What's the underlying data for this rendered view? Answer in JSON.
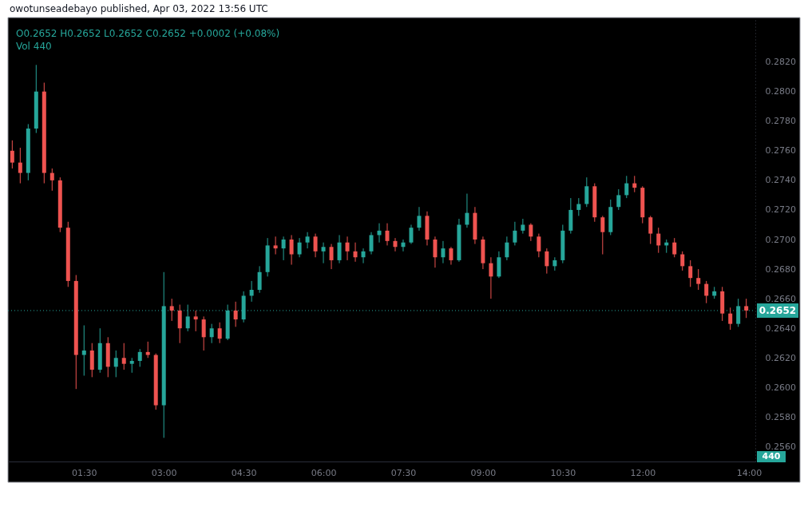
{
  "chart_data": {
    "type": "candlestick",
    "title": "owotunseadebayo published, Apr 03, 2022 13:56 UTC",
    "subtitle": "O0.2652 H0.2652 L0.2652 C0.2652 +0.0002 (+0.08%)",
    "annotations": [
      "Vol 440",
      "440"
    ],
    "x": [
      0.15,
      0.3,
      0.45,
      0.6,
      0.75,
      0.9,
      1.05,
      1.2,
      1.35,
      1.5,
      1.65,
      1.8,
      1.95,
      2.1,
      2.25,
      2.4,
      2.55,
      2.7,
      2.85,
      3.0,
      3.15,
      3.3,
      3.45,
      3.6,
      3.75,
      3.9,
      4.05,
      4.2,
      4.35,
      4.5,
      4.65,
      4.8,
      4.95,
      5.1,
      5.25,
      5.4,
      5.55,
      5.7,
      5.85,
      6.0,
      6.15,
      6.3,
      6.45,
      6.6,
      6.75,
      6.9,
      7.05,
      7.2,
      7.35,
      7.5,
      7.65,
      7.8,
      7.95,
      8.1,
      8.25,
      8.4,
      8.55,
      8.7,
      8.85,
      9.0,
      9.15,
      9.3,
      9.45,
      9.6,
      9.75,
      9.9,
      10.05,
      10.2,
      10.35,
      10.5,
      10.65,
      10.8,
      10.95,
      11.1,
      11.25,
      11.4,
      11.55,
      11.7,
      11.85,
      12.0,
      12.15,
      12.3,
      12.45,
      12.6,
      12.75,
      12.9,
      13.05,
      13.2,
      13.35,
      13.5,
      13.65,
      13.8,
      13.95
    ],
    "ohlc": [
      [
        0.276,
        0.2767,
        0.2748,
        0.2752
      ],
      [
        0.2752,
        0.2762,
        0.2738,
        0.2745
      ],
      [
        0.2745,
        0.2778,
        0.274,
        0.2775
      ],
      [
        0.2775,
        0.2818,
        0.2772,
        0.28
      ],
      [
        0.28,
        0.2806,
        0.2738,
        0.2745
      ],
      [
        0.2745,
        0.2748,
        0.2733,
        0.274
      ],
      [
        0.274,
        0.2742,
        0.2705,
        0.2708
      ],
      [
        0.2708,
        0.2712,
        0.2668,
        0.2672
      ],
      [
        0.2672,
        0.2676,
        0.2599,
        0.2622
      ],
      [
        0.2622,
        0.2642,
        0.2608,
        0.2625
      ],
      [
        0.2625,
        0.263,
        0.2607,
        0.2612
      ],
      [
        0.2612,
        0.264,
        0.261,
        0.263
      ],
      [
        0.263,
        0.2634,
        0.2607,
        0.2614
      ],
      [
        0.2614,
        0.2625,
        0.2607,
        0.262
      ],
      [
        0.262,
        0.263,
        0.2612,
        0.2616
      ],
      [
        0.2616,
        0.262,
        0.261,
        0.2618
      ],
      [
        0.2618,
        0.2626,
        0.2614,
        0.2624
      ],
      [
        0.2624,
        0.2631,
        0.262,
        0.2622
      ],
      [
        0.2622,
        0.2623,
        0.2585,
        0.2588
      ],
      [
        0.2588,
        0.2678,
        0.2566,
        0.2655
      ],
      [
        0.2655,
        0.266,
        0.2645,
        0.2652
      ],
      [
        0.2652,
        0.2656,
        0.263,
        0.264
      ],
      [
        0.264,
        0.2656,
        0.2638,
        0.2648
      ],
      [
        0.2648,
        0.2652,
        0.2638,
        0.2646
      ],
      [
        0.2646,
        0.2648,
        0.2625,
        0.2634
      ],
      [
        0.2634,
        0.2643,
        0.263,
        0.264
      ],
      [
        0.264,
        0.2644,
        0.263,
        0.2633
      ],
      [
        0.2633,
        0.2656,
        0.2632,
        0.2652
      ],
      [
        0.2652,
        0.2658,
        0.2641,
        0.2646
      ],
      [
        0.2646,
        0.2665,
        0.2644,
        0.2662
      ],
      [
        0.2662,
        0.2672,
        0.2658,
        0.2666
      ],
      [
        0.2666,
        0.2682,
        0.2664,
        0.2678
      ],
      [
        0.2678,
        0.2701,
        0.2675,
        0.2696
      ],
      [
        0.2696,
        0.2702,
        0.269,
        0.2694
      ],
      [
        0.2694,
        0.2702,
        0.2686,
        0.27
      ],
      [
        0.27,
        0.2703,
        0.2683,
        0.269
      ],
      [
        0.269,
        0.2701,
        0.2688,
        0.2698
      ],
      [
        0.2698,
        0.2705,
        0.2694,
        0.2702
      ],
      [
        0.2702,
        0.2704,
        0.2688,
        0.2692
      ],
      [
        0.2692,
        0.2698,
        0.2684,
        0.2695
      ],
      [
        0.2695,
        0.2697,
        0.268,
        0.2686
      ],
      [
        0.2686,
        0.2703,
        0.2684,
        0.2698
      ],
      [
        0.2698,
        0.2702,
        0.2686,
        0.2692
      ],
      [
        0.2692,
        0.2698,
        0.2685,
        0.2688
      ],
      [
        0.2688,
        0.2694,
        0.2684,
        0.2692
      ],
      [
        0.2692,
        0.2705,
        0.269,
        0.2703
      ],
      [
        0.2703,
        0.2711,
        0.2698,
        0.2706
      ],
      [
        0.2706,
        0.2711,
        0.2696,
        0.2699
      ],
      [
        0.2699,
        0.2701,
        0.2692,
        0.2695
      ],
      [
        0.2695,
        0.27,
        0.2692,
        0.2698
      ],
      [
        0.2698,
        0.271,
        0.2697,
        0.2708
      ],
      [
        0.2708,
        0.2722,
        0.2706,
        0.2716
      ],
      [
        0.2716,
        0.2719,
        0.2696,
        0.27
      ],
      [
        0.27,
        0.2702,
        0.2681,
        0.2688
      ],
      [
        0.2688,
        0.2699,
        0.2684,
        0.2694
      ],
      [
        0.2694,
        0.2695,
        0.2683,
        0.2686
      ],
      [
        0.2686,
        0.2714,
        0.2685,
        0.271
      ],
      [
        0.271,
        0.2731,
        0.2708,
        0.2718
      ],
      [
        0.2718,
        0.2722,
        0.2697,
        0.27
      ],
      [
        0.27,
        0.2702,
        0.268,
        0.2684
      ],
      [
        0.2684,
        0.2688,
        0.266,
        0.2675
      ],
      [
        0.2675,
        0.2692,
        0.2674,
        0.2688
      ],
      [
        0.2688,
        0.2702,
        0.2686,
        0.2698
      ],
      [
        0.2698,
        0.2712,
        0.2696,
        0.2706
      ],
      [
        0.2706,
        0.2714,
        0.2704,
        0.271
      ],
      [
        0.271,
        0.2711,
        0.2699,
        0.2702
      ],
      [
        0.2702,
        0.2704,
        0.2688,
        0.2692
      ],
      [
        0.2692,
        0.2694,
        0.2677,
        0.2682
      ],
      [
        0.2682,
        0.2688,
        0.2679,
        0.2686
      ],
      [
        0.2686,
        0.271,
        0.2684,
        0.2706
      ],
      [
        0.2706,
        0.2728,
        0.2704,
        0.272
      ],
      [
        0.272,
        0.2728,
        0.2716,
        0.2724
      ],
      [
        0.2724,
        0.2742,
        0.2722,
        0.2736
      ],
      [
        0.2736,
        0.2738,
        0.2712,
        0.2715
      ],
      [
        0.2715,
        0.2716,
        0.269,
        0.2705
      ],
      [
        0.2705,
        0.2727,
        0.2703,
        0.2722
      ],
      [
        0.2722,
        0.2734,
        0.272,
        0.273
      ],
      [
        0.273,
        0.2743,
        0.2728,
        0.2738
      ],
      [
        0.2738,
        0.2743,
        0.2732,
        0.2735
      ],
      [
        0.2735,
        0.2736,
        0.2711,
        0.2715
      ],
      [
        0.2715,
        0.2716,
        0.2697,
        0.2704
      ],
      [
        0.2704,
        0.2708,
        0.2691,
        0.2696
      ],
      [
        0.2696,
        0.27,
        0.2691,
        0.2698
      ],
      [
        0.2698,
        0.2701,
        0.2688,
        0.269
      ],
      [
        0.269,
        0.2692,
        0.2679,
        0.2682
      ],
      [
        0.2682,
        0.2686,
        0.2668,
        0.2674
      ],
      [
        0.2674,
        0.268,
        0.2666,
        0.267
      ],
      [
        0.267,
        0.2672,
        0.2657,
        0.2662
      ],
      [
        0.2662,
        0.2668,
        0.266,
        0.2665
      ],
      [
        0.2665,
        0.2668,
        0.2645,
        0.265
      ],
      [
        0.265,
        0.2654,
        0.2639,
        0.2643
      ],
      [
        0.2643,
        0.266,
        0.2641,
        0.2655
      ],
      [
        0.2655,
        0.266,
        0.2647,
        0.2652
      ]
    ],
    "colors": [
      "#ef5350",
      "#ef5350",
      "#26a69a",
      "#26a69a",
      "#ef5350",
      "#ef5350",
      "#ef5350",
      "#ef5350",
      "#ef5350",
      "#26a69a",
      "#ef5350",
      "#26a69a",
      "#ef5350",
      "#26a69a",
      "#ef5350",
      "#26a69a",
      "#26a69a",
      "#ef5350",
      "#ef5350",
      "#26a69a",
      "#ef5350",
      "#ef5350",
      "#26a69a",
      "#ef5350",
      "#ef5350",
      "#26a69a",
      "#ef5350",
      "#26a69a",
      "#ef5350",
      "#26a69a",
      "#26a69a",
      "#26a69a",
      "#26a69a",
      "#ef5350",
      "#26a69a",
      "#ef5350",
      "#26a69a",
      "#26a69a",
      "#ef5350",
      "#26a69a",
      "#ef5350",
      "#26a69a",
      "#ef5350",
      "#ef5350",
      "#26a69a",
      "#26a69a",
      "#26a69a",
      "#ef5350",
      "#ef5350",
      "#26a69a",
      "#26a69a",
      "#26a69a",
      "#ef5350",
      "#ef5350",
      "#26a69a",
      "#ef5350",
      "#26a69a",
      "#26a69a",
      "#ef5350",
      "#ef5350",
      "#ef5350",
      "#26a69a",
      "#26a69a",
      "#26a69a",
      "#26a69a",
      "#ef5350",
      "#ef5350",
      "#ef5350",
      "#26a69a",
      "#26a69a",
      "#26a69a",
      "#26a69a",
      "#26a69a",
      "#ef5350",
      "#ef5350",
      "#26a69a",
      "#26a69a",
      "#26a69a",
      "#ef5350",
      "#ef5350",
      "#ef5350",
      "#ef5350",
      "#26a69a",
      "#ef5350",
      "#ef5350",
      "#ef5350",
      "#ef5350",
      "#ef5350",
      "#26a69a",
      "#ef5350",
      "#ef5350",
      "#26a69a",
      "#ef5350"
    ],
    "xlim": [
      0.07,
      14.12
    ],
    "xticks": [
      {
        "value": 1.5,
        "label": "01:30"
      },
      {
        "value": 3,
        "label": "03:00"
      },
      {
        "value": 4.5,
        "label": "04:30"
      },
      {
        "value": 6,
        "label": "06:00"
      },
      {
        "value": 7.5,
        "label": "07:30"
      },
      {
        "value": 9,
        "label": "09:00"
      },
      {
        "value": 10.5,
        "label": "10:30"
      },
      {
        "value": 12,
        "label": "12:00"
      },
      {
        "value": 14,
        "label": "14:00"
      }
    ],
    "ylim": [
      0.255,
      0.285
    ],
    "yticks": [
      {
        "value": 0.256,
        "label": "0.2560"
      },
      {
        "value": 0.258,
        "label": "0.2580"
      },
      {
        "value": 0.26,
        "label": "0.2600"
      },
      {
        "value": 0.262,
        "label": "0.2620"
      },
      {
        "value": 0.264,
        "label": "0.2640"
      },
      {
        "value": 0.266,
        "label": "0.2660"
      },
      {
        "value": 0.268,
        "label": "0.2680"
      },
      {
        "value": 0.27,
        "label": "0.2700"
      },
      {
        "value": 0.272,
        "label": "0.2720"
      },
      {
        "value": 0.274,
        "label": "0.2740"
      },
      {
        "value": 0.276,
        "label": "0.2760"
      },
      {
        "value": 0.278,
        "label": "0.2780"
      },
      {
        "value": 0.28,
        "label": "0.2800"
      },
      {
        "value": 0.282,
        "label": "0.2820"
      }
    ],
    "ref_lines": [
      {
        "axis": "y",
        "value": 0.2652,
        "label": "0.2652",
        "color": "#26a69a",
        "line_style": "dotted"
      }
    ],
    "grid": false
  }
}
